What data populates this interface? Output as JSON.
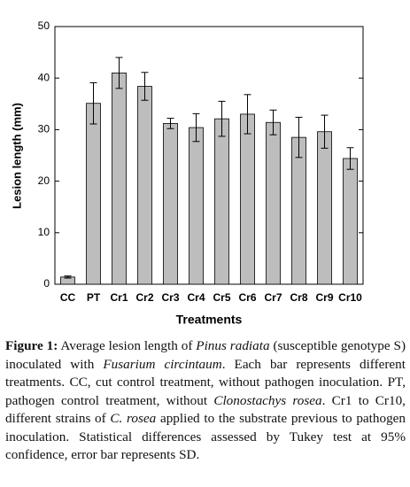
{
  "chart_data": {
    "type": "bar",
    "x_label": "Treatments",
    "y_label": "Lesion length (mm)",
    "categories": [
      "CC",
      "PT",
      "Cr1",
      "Cr2",
      "Cr3",
      "Cr4",
      "Cr5",
      "Cr6",
      "Cr7",
      "Cr8",
      "Cr9",
      "Cr10"
    ],
    "values": [
      1.4,
      35.1,
      41,
      38.4,
      31.2,
      30.4,
      32.1,
      33,
      31.4,
      28.5,
      29.6,
      24.4
    ],
    "errors": [
      0.2,
      4,
      3,
      2.7,
      1,
      2.7,
      3.4,
      3.8,
      2.4,
      3.9,
      3.2,
      2.1
    ],
    "color": "#bdbdbd",
    "ylim": [
      0,
      50
    ],
    "yticks": [
      0,
      10,
      20,
      30,
      40,
      50
    ]
  },
  "caption": {
    "label": "Figure 1:",
    "segments": [
      "Average lesion length of ",
      "Pinus radiata",
      " (susceptible genotype S) inoculated with ",
      "Fusarium circintaum",
      ". Each bar represents different treatments. CC, cut control treatment, without pathogen inoculation. PT, pathogen control treatment, without ",
      "Clonostachys rosea",
      ". Cr1 to Cr10, different strains of ",
      "C. rosea",
      " applied to the substrate previous to pathogen inoculation. Statistical differences assessed by Tukey test at 95% confidence, error bar represents SD."
    ]
  }
}
